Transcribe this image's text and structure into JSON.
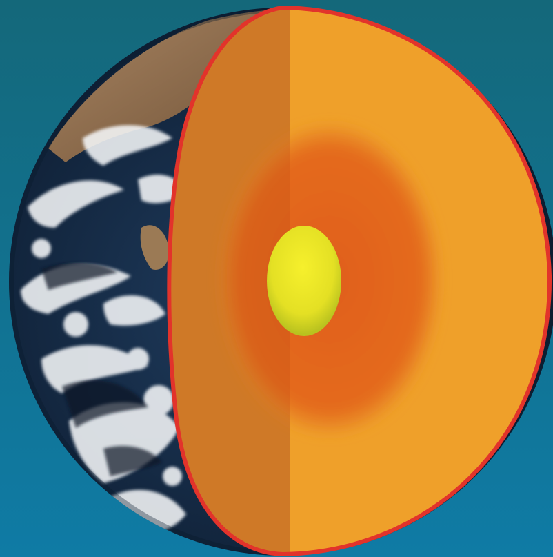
{
  "figure": {
    "subject": "earth-cross-section",
    "layers": [
      {
        "name": "crust",
        "color": "#d9852b"
      },
      {
        "name": "mantle",
        "color": "#efa02a"
      },
      {
        "name": "outer-core",
        "color": "#e46a1e"
      },
      {
        "name": "inner-core",
        "color": "#e9e326"
      }
    ],
    "colors": {
      "background_top": "#14687a",
      "background_bottom": "#0f7ba5",
      "cut_outline": "#e2332b",
      "ocean": "#132a45",
      "clouds": "#f4f6f8",
      "land": "#8c6a4a"
    }
  }
}
